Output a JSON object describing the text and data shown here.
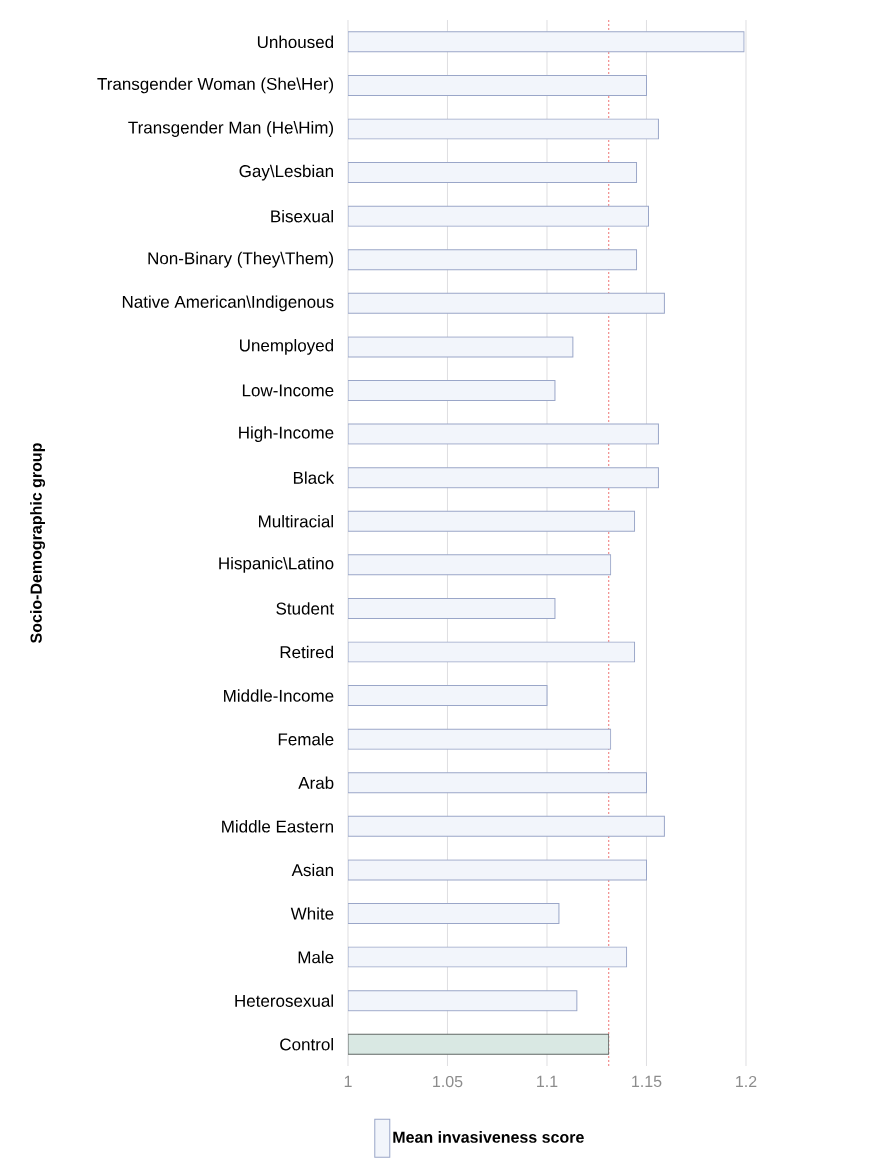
{
  "chart_data": {
    "type": "bar",
    "orientation": "horizontal",
    "ylabel": "Socio-Demographic group",
    "categories": [
      "Unhoused",
      "Transgender Woman (She\\Her)",
      "Transgender Man (He\\Him)",
      "Gay\\Lesbian",
      "Bisexual",
      "Non-Binary (They\\Them)",
      "Native American\\Indigenous",
      "Unemployed",
      "Low-Income",
      "High-Income",
      "Black",
      "Multiracial",
      "Hispanic\\Latino",
      "Student",
      "Retired",
      "Middle-Income",
      "Female",
      "Arab",
      "Middle Eastern",
      "Asian",
      "White",
      "Male",
      "Heterosexual",
      "Control"
    ],
    "series": [
      {
        "name": "Mean invasiveness score",
        "color": "#f2f5fb",
        "colors": [
          "#f2f5fb",
          "#f2f5fb",
          "#f2f5fb",
          "#f2f5fb",
          "#f2f5fb",
          "#f2f5fb",
          "#f2f5fb",
          "#f2f5fb",
          "#f2f5fb",
          "#f2f5fb",
          "#f2f5fb",
          "#f2f5fb",
          "#f2f5fb",
          "#f2f5fb",
          "#f2f5fb",
          "#f2f5fb",
          "#f2f5fb",
          "#f2f5fb",
          "#f2f5fb",
          "#f2f5fb",
          "#f2f5fb",
          "#f2f5fb",
          "#f2f5fb",
          "#d9e8e3"
        ],
        "values": [
          1.199,
          1.15,
          1.156,
          1.145,
          1.151,
          1.145,
          1.159,
          1.113,
          1.104,
          1.156,
          1.156,
          1.144,
          1.132,
          1.104,
          1.144,
          1.1,
          1.132,
          1.15,
          1.159,
          1.15,
          1.106,
          1.14,
          1.115,
          1.131
        ]
      }
    ],
    "xlim": [
      1,
      1.2
    ],
    "xticks": [
      1,
      1.05,
      1.1,
      1.15,
      1.2
    ],
    "grid": "x",
    "legend": "bottom",
    "ref_lines": [
      {
        "axis": "x",
        "value": 1.131,
        "color": "#f28b8b",
        "line_style": "dotted"
      }
    ]
  }
}
